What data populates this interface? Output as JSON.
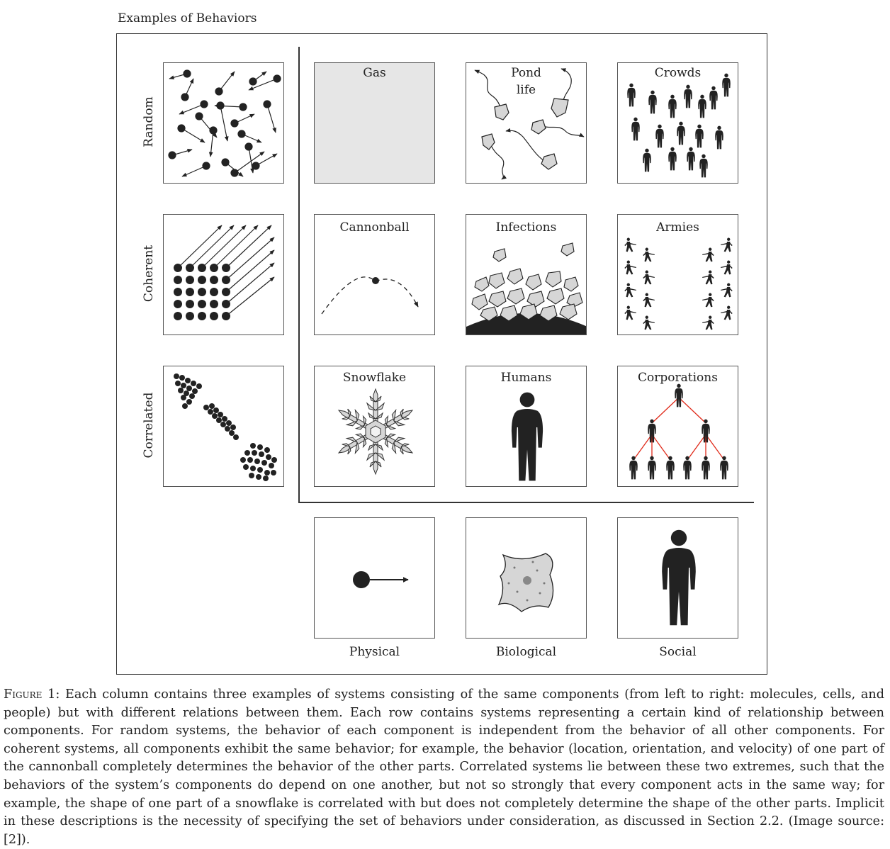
{
  "title": "Examples of Behaviors",
  "rows": [
    "Random",
    "Coherent",
    "Correlated"
  ],
  "columns": [
    "Physical",
    "Biological",
    "Social"
  ],
  "panels": {
    "gas": "Gas",
    "pond_line1": "Pond",
    "pond_line2": "life",
    "crowds": "Crowds",
    "cannonball": "Cannonball",
    "infections": "Infections",
    "armies": "Armies",
    "snowflake": "Snowflake",
    "humans": "Humans",
    "corporations": "Corporations"
  },
  "caption": {
    "label": "Figure 1",
    "text": ": Each column contains three examples of systems consisting of the same components (from left to right: molecules, cells, and people) but with different relations between them. Each row contains systems representing a certain kind of relationship between components. For random systems, the behavior of each component is independent from the behavior of all other components. For coherent systems, all components exhibit the same behavior; for example, the behavior (location, orientation, and velocity) of one part of the cannonball completely determines the behavior of the other parts. Correlated systems lie between these two extremes, such that the behaviors of the system’s components do depend on one another, but not so strongly that every component acts in the same way; for example, the shape of one part of a snowflake is correlated with but does not completely determine the shape of the other parts. Implicit in these descriptions is the necessity of specifying the set of behaviors under consideration, as discussed in Section 2.2. (Image source: [2])."
  },
  "colors": {
    "ink": "#222222",
    "gas_fill": "#e6e6e6",
    "cell_fill": "#d6d6d6",
    "hierarchy_line": "#e02a1a"
  }
}
